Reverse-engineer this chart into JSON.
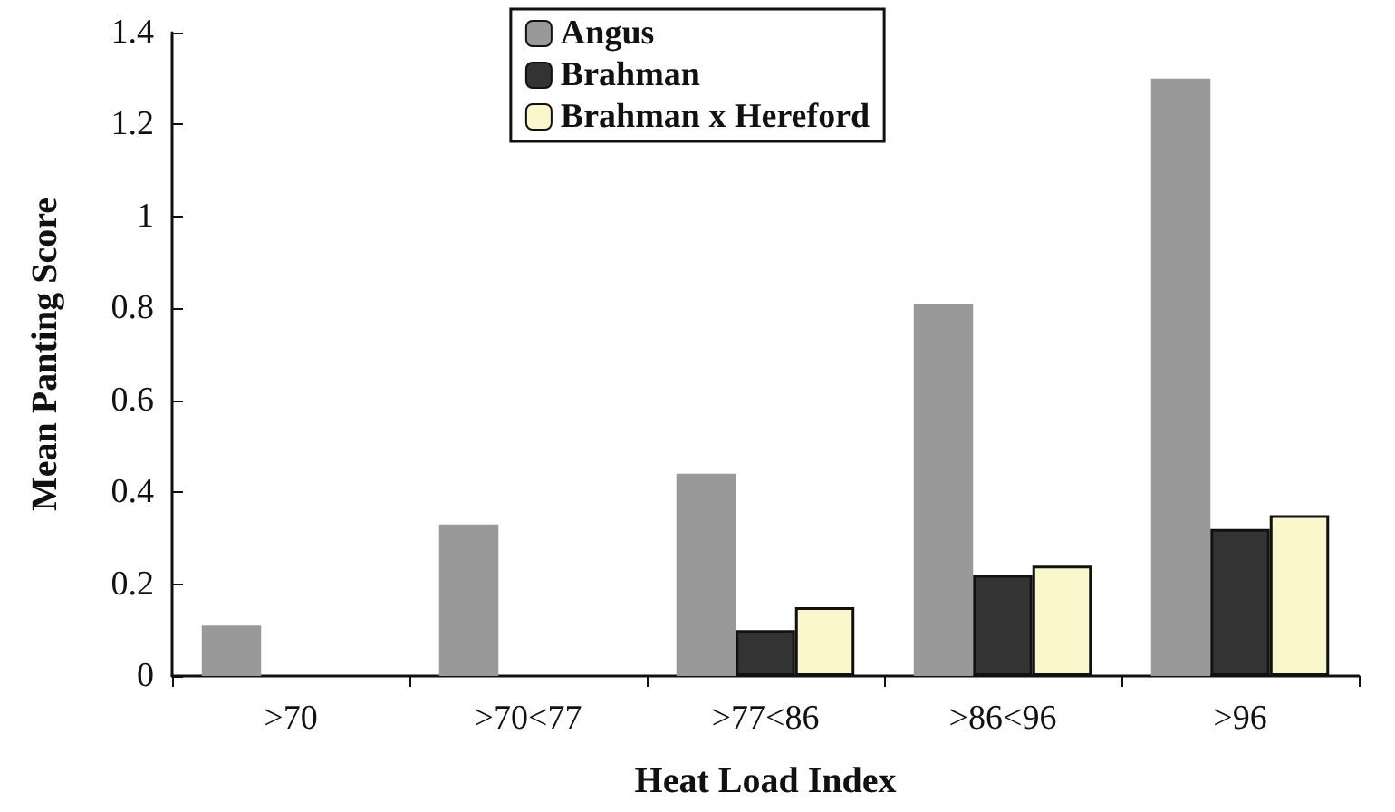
{
  "chart_data": {
    "type": "bar",
    "xlabel": "Heat Load Index",
    "ylabel": "Mean Panting Score",
    "categories": [
      ">70",
      ">70<77",
      ">77<86",
      ">86<96",
      ">96"
    ],
    "series": [
      {
        "name": "Angus",
        "color": "#999999",
        "values": [
          0.11,
          0.33,
          0.44,
          0.81,
          1.3
        ]
      },
      {
        "name": "Brahman",
        "color": "#333333",
        "values": [
          null,
          null,
          0.1,
          0.22,
          0.32
        ]
      },
      {
        "name": "Brahman x Hereford",
        "color": "#fbf7cc",
        "values": [
          null,
          null,
          0.15,
          0.24,
          0.35
        ]
      }
    ],
    "ylim": [
      0,
      1.4
    ],
    "yticks": [
      0,
      0.2,
      0.4,
      0.6,
      0.8,
      1,
      1.2,
      1.4
    ],
    "grid": false,
    "legend": "top"
  }
}
